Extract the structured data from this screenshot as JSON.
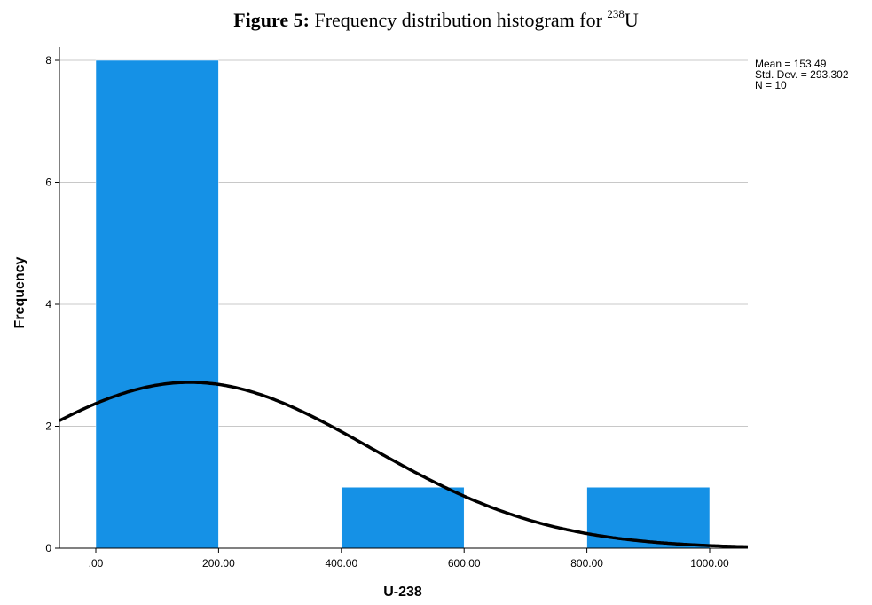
{
  "figure": {
    "label": "Figure 5:",
    "caption": "Frequency distribution histogram for",
    "isotope_mass": "238",
    "isotope_symbol": "U"
  },
  "chart_data": {
    "type": "bar",
    "subtype": "histogram",
    "xlabel": "U-238",
    "ylabel": "Frequency",
    "xlim": [
      -50,
      1060
    ],
    "ylim": [
      0,
      8
    ],
    "x_tick_labels": [
      ".00",
      "200.00",
      "400.00",
      "600.00",
      "800.00",
      "1000.00"
    ],
    "x_tick_values": [
      0,
      200,
      400,
      600,
      800,
      1000
    ],
    "y_tick_labels": [
      "0",
      "2",
      "4",
      "6",
      "8"
    ],
    "y_tick_values": [
      0,
      2,
      4,
      6,
      8
    ],
    "bins": [
      {
        "start": 0,
        "end": 200,
        "count": 8
      },
      {
        "start": 200,
        "end": 400,
        "count": 0
      },
      {
        "start": 400,
        "end": 600,
        "count": 1
      },
      {
        "start": 600,
        "end": 800,
        "count": 0
      },
      {
        "start": 800,
        "end": 1000,
        "count": 1
      }
    ],
    "normal_curve": {
      "mean": 153.49,
      "std_dev": 293.302,
      "n": 10,
      "bin_width": 200
    },
    "stats": [
      "Mean = 153.49",
      "Std. Dev. = 293.302",
      "N = 10"
    ],
    "bar_color": "#1591e6",
    "curve_color": "#000000",
    "grid": "horizontal"
  }
}
